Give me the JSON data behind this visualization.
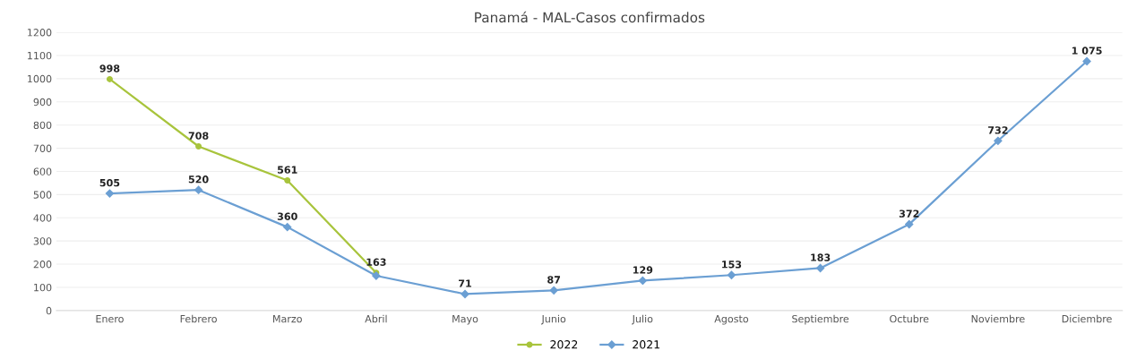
{
  "chart_data": {
    "type": "line",
    "title": "Panamá - MAL-Casos confirmados",
    "categories": [
      "Enero",
      "Febrero",
      "Marzo",
      "Abril",
      "Mayo",
      "Junio",
      "Julio",
      "Agosto",
      "Septiembre",
      "Octubre",
      "Noviembre",
      "Diciembre"
    ],
    "series": [
      {
        "name": "2022",
        "color": "#a8c43c",
        "marker": "circle",
        "values": [
          998,
          708,
          561,
          163,
          null,
          null,
          null,
          null,
          null,
          null,
          null,
          null
        ],
        "value_labels": [
          "998",
          "708",
          "561",
          "163",
          null,
          null,
          null,
          null,
          null,
          null,
          null,
          null
        ]
      },
      {
        "name": "2021",
        "color": "#6b9fd3",
        "marker": "diamond",
        "values": [
          505,
          520,
          360,
          150,
          71,
          87,
          129,
          153,
          183,
          372,
          732,
          1075
        ],
        "value_labels": [
          "505",
          "520",
          "360",
          null,
          "71",
          "87",
          "129",
          "153",
          "183",
          "372",
          "732",
          "1 075"
        ]
      }
    ],
    "ylim": [
      0,
      1200
    ],
    "yticks": [
      0,
      100,
      200,
      300,
      400,
      500,
      600,
      700,
      800,
      900,
      1000,
      1100,
      1200
    ],
    "grid": "y",
    "legend": "bottom",
    "line_style": "solid"
  }
}
